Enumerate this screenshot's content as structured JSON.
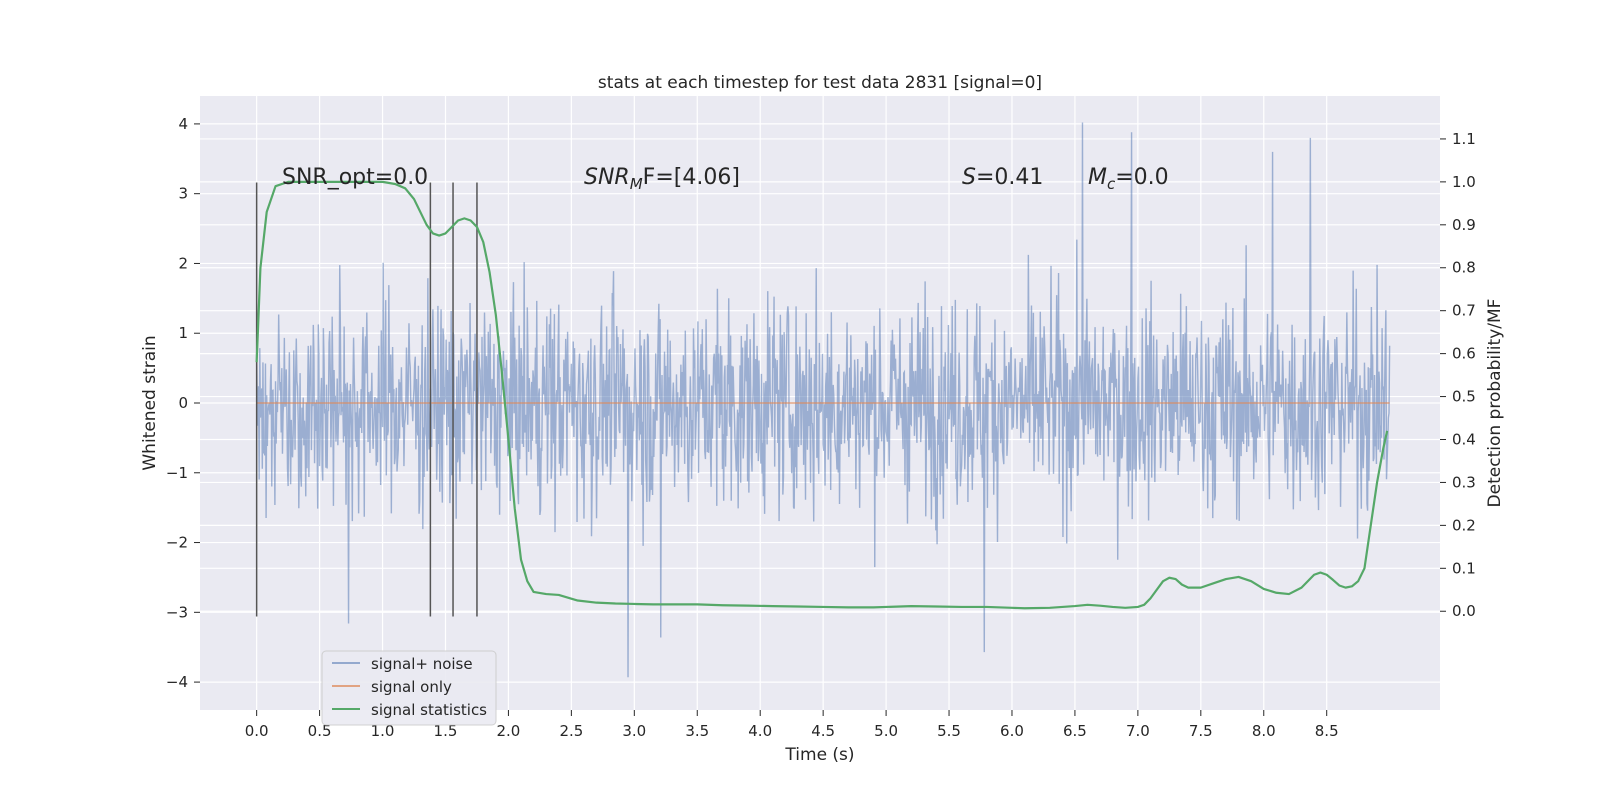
{
  "chart_data": {
    "type": "line",
    "title": "stats at each timestep for test data 2831 [signal=0]",
    "xlabel": "Time (s)",
    "ylabel": "Whitened strain",
    "ylabel_right": "Detection probability/MF",
    "xlim": [
      -0.45,
      9.4
    ],
    "ylim": [
      -4.4,
      4.4
    ],
    "ylim_right": [
      -0.23,
      1.2
    ],
    "x_ticks": [
      "0.0",
      "0.5",
      "1.0",
      "1.5",
      "2.0",
      "2.5",
      "3.0",
      "3.5",
      "4.0",
      "4.5",
      "5.0",
      "5.5",
      "6.0",
      "6.5",
      "7.0",
      "7.5",
      "8.0",
      "8.5"
    ],
    "y_ticks": [
      "4",
      "3",
      "2",
      "1",
      "0",
      "−1",
      "−2",
      "−3",
      "−4"
    ],
    "y_ticks_right": [
      "1.1",
      "1.0",
      "0.9",
      "0.8",
      "0.7",
      "0.6",
      "0.5",
      "0.4",
      "0.3",
      "0.2",
      "0.1",
      "0.0"
    ],
    "grid": true,
    "legend_position": "lower-left",
    "annotations": {
      "snr_opt": "SNR_opt=0.0",
      "snr_mf_label": "SNR",
      "snr_mf_sub": "M",
      "snr_mf_tail": "F=[4.06]",
      "s_label": "S",
      "s_value": "=0.41",
      "mc_label": "M",
      "mc_sub": "c",
      "mc_value": "=0.0"
    },
    "vertical_lines_x": [
      0.0,
      1.38,
      1.56,
      1.75
    ],
    "vertical_lines_range": [
      -3.06,
      3.16
    ],
    "series": [
      {
        "name": "signal+ noise",
        "color": "#4c72b0",
        "x_range": [
          0.0,
          9.0
        ],
        "typical_range": [
          -2.0,
          2.0
        ],
        "extremes": [
          {
            "x": 6.56,
            "y": 4.02
          },
          {
            "x": 2.95,
            "y": -3.93
          },
          {
            "x": 5.78,
            "y": -3.57
          },
          {
            "x": 3.21,
            "y": -3.36
          },
          {
            "x": 0.73,
            "y": -3.16
          },
          {
            "x": 8.37,
            "y": 3.8
          },
          {
            "x": 6.95,
            "y": 3.88
          },
          {
            "x": 8.07,
            "y": 3.6
          }
        ]
      },
      {
        "name": "signal only",
        "color": "#dd8452",
        "x": [
          0.0,
          9.0
        ],
        "y": [
          0.0,
          0.0
        ]
      },
      {
        "name": "signal statistics",
        "color": "#55a868",
        "axis": "right",
        "x": [
          0.0,
          0.03,
          0.08,
          0.15,
          0.25,
          0.4,
          0.6,
          0.8,
          1.0,
          1.1,
          1.18,
          1.25,
          1.3,
          1.35,
          1.4,
          1.45,
          1.5,
          1.55,
          1.6,
          1.65,
          1.7,
          1.75,
          1.8,
          1.85,
          1.9,
          1.95,
          2.0,
          2.05,
          2.1,
          2.15,
          2.2,
          2.3,
          2.4,
          2.55,
          2.7,
          2.85,
          3.0,
          3.15,
          3.3,
          3.5,
          3.7,
          3.9,
          4.1,
          4.3,
          4.5,
          4.7,
          4.9,
          5.0,
          5.2,
          5.4,
          5.6,
          5.8,
          6.0,
          6.1,
          6.3,
          6.5,
          6.6,
          6.7,
          6.8,
          6.9,
          7.0,
          7.05,
          7.1,
          7.15,
          7.2,
          7.25,
          7.3,
          7.35,
          7.4,
          7.5,
          7.6,
          7.7,
          7.8,
          7.9,
          8.0,
          8.1,
          8.2,
          8.3,
          8.4,
          8.45,
          8.5,
          8.55,
          8.6,
          8.65,
          8.7,
          8.75,
          8.8,
          8.85,
          8.9,
          8.95,
          8.98
        ],
        "y": [
          0.58,
          0.8,
          0.93,
          0.99,
          1.0,
          1.0,
          1.0,
          1.0,
          1.0,
          0.995,
          0.985,
          0.96,
          0.93,
          0.9,
          0.88,
          0.875,
          0.88,
          0.895,
          0.91,
          0.915,
          0.91,
          0.895,
          0.86,
          0.79,
          0.69,
          0.55,
          0.4,
          0.24,
          0.12,
          0.07,
          0.045,
          0.04,
          0.038,
          0.025,
          0.02,
          0.018,
          0.017,
          0.016,
          0.016,
          0.016,
          0.014,
          0.013,
          0.012,
          0.011,
          0.01,
          0.009,
          0.009,
          0.01,
          0.012,
          0.011,
          0.01,
          0.01,
          0.008,
          0.007,
          0.008,
          0.012,
          0.015,
          0.013,
          0.01,
          0.008,
          0.01,
          0.015,
          0.03,
          0.05,
          0.07,
          0.078,
          0.075,
          0.062,
          0.055,
          0.055,
          0.065,
          0.075,
          0.08,
          0.07,
          0.052,
          0.043,
          0.04,
          0.055,
          0.085,
          0.09,
          0.085,
          0.073,
          0.06,
          0.055,
          0.058,
          0.07,
          0.1,
          0.2,
          0.3,
          0.38,
          0.42
        ]
      }
    ]
  }
}
